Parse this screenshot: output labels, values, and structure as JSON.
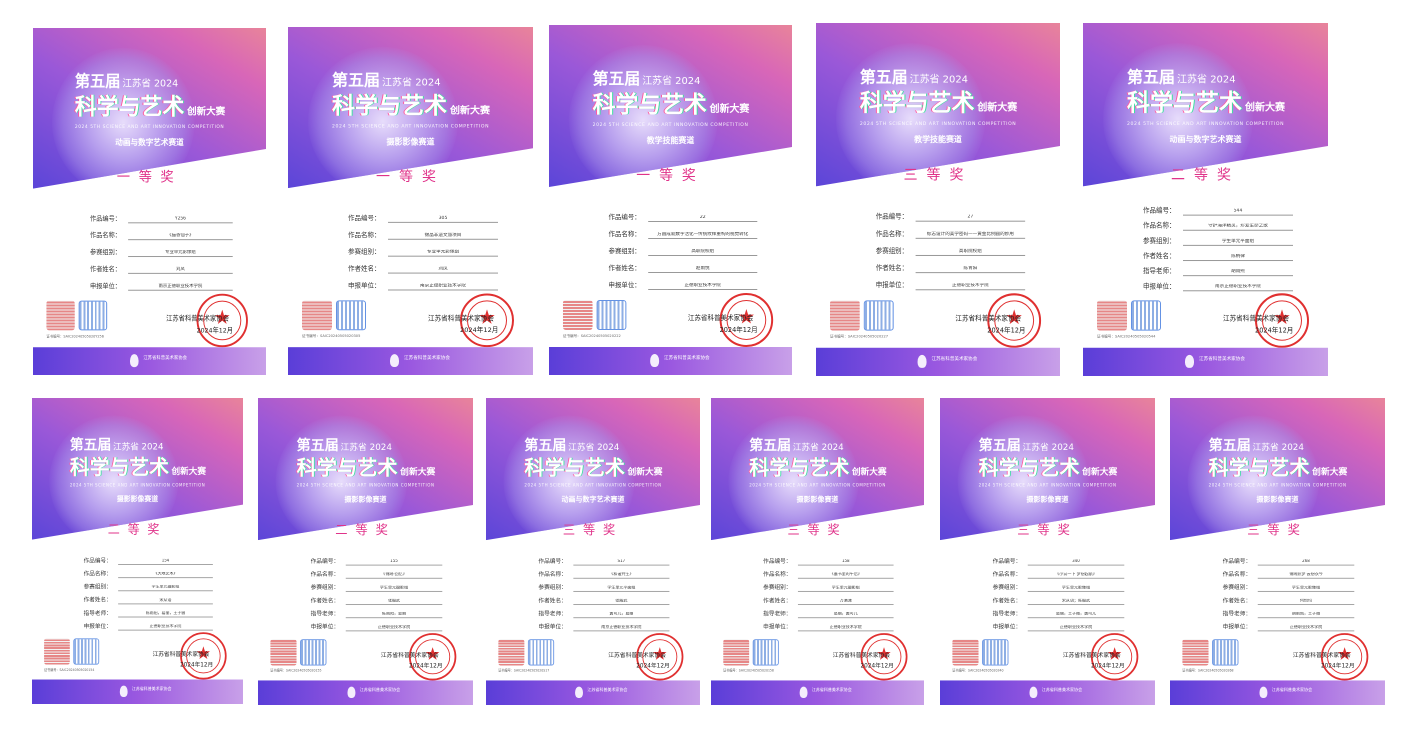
{
  "common": {
    "edition": "第五届",
    "province_year": "江苏省 2024",
    "title_main": "科学与艺术",
    "title_sub": "创新大赛",
    "title_en": "2024 5TH SCIENCE AND ART INNOVATION COMPETITION",
    "signer": "江苏省科普美术家协会",
    "date": "2024年12月",
    "footer_org": "江苏省科普美术家协会",
    "labels": {
      "id": "作品编号：",
      "name": "作品名称：",
      "group": "参赛组别：",
      "author": "作者姓名：",
      "teacher": "指导老师：",
      "unit": "申报单位："
    },
    "colors": {
      "award": "#e0338a",
      "seal": "#e03030",
      "header_start": "#5a45d8",
      "header_end": "#e8849a"
    }
  },
  "certificates": [
    {
      "track": "动画与数字艺术赛道",
      "award": "一等奖",
      "id": "Y256",
      "name": "《猫香仙子》",
      "group": "专业单元影像组",
      "author": "刘凤",
      "unit": "南京正德职业技术学院",
      "cert_no": "证书编号：SAIC20240505020Y256"
    },
    {
      "track": "摄影影像赛道",
      "award": "一等奖",
      "id": "305",
      "name": "锦晶非遗文旅项目",
      "group": "专业单元影像组",
      "author": "刘凤",
      "unit": "南京正德职业技术学院",
      "cert_no": "证书编号：SAIC20240505020305"
    },
    {
      "track": "教学技能赛道",
      "award": "一等奖",
      "id": "22",
      "name": "方圆成就数字活化—传统纹样重构的视觉转化",
      "group": "高职院校组",
      "author": "赵雨悦",
      "unit": "正德职业技术学院",
      "cert_no": "证书编号：SAIC20240505020222"
    },
    {
      "track": "教学技能赛道",
      "award": "三等奖",
      "id": "27",
      "name": "标志设计的美学密码——黄金比例圆的妙用",
      "group": "高职院校组",
      "author": "陈青阳",
      "unit": "正德职业技术学院",
      "cert_no": "证书编号：SAIC20240505020227"
    },
    {
      "track": "动画与数字艺术赛道",
      "award": "二等奖",
      "id": "544",
      "name": "守护海洋精灵，珍爱生命之歌",
      "group": "学生单元平面组",
      "author": "陈柄律",
      "teacher": "胡雨熙",
      "unit": "南京正德职业技术学院",
      "cert_no": "证书编号：SAIC20240505020544"
    },
    {
      "track": "摄影影像赛道",
      "award": "二等奖",
      "id": "154",
      "name": "《大地艺术》",
      "group": "学生单元摄影组",
      "author": "宋从语",
      "teacher": "陈雨阳，葛丽，王子薇",
      "unit": "正德职业技术学院",
      "cert_no": "证书编号：SAIC20240505020154"
    },
    {
      "track": "摄影影像赛道",
      "award": "二等奖",
      "id": "155",
      "name": "《锦绣·回忆》",
      "group": "学生单元摄影组",
      "author": "张殷武",
      "teacher": "陈雨阳，葛丽",
      "unit": "正德职业技术学院",
      "cert_no": "证书编号：SAIC20240505020155"
    },
    {
      "track": "动画与数字艺术赛道",
      "award": "三等奖",
      "id": "S17",
      "name": "《和谐共生》",
      "group": "学生单元平面组",
      "author": "张殷武",
      "teacher": "黄可儿，葛丽",
      "unit": "南京正德职业技术学院",
      "cert_no": "证书编号：SAIC20240505020S17"
    },
    {
      "track": "摄影影像赛道",
      "award": "三等奖",
      "id": "158",
      "name": "《墨书里的午后》",
      "group": "学生单元摄影组",
      "author": "万满潇",
      "teacher": "葛丽，黄可儿",
      "unit": "正德职业技术学院",
      "cert_no": "证书编号：SAIC20240505020158"
    },
    {
      "track": "摄影影像赛道",
      "award": "三等奖",
      "id": "340",
      "name": "《小试一下 梦想起航》",
      "group": "学生单元影像组",
      "author": "宋从语；陈殷武",
      "teacher": "葛丽，王子薇，黄可儿",
      "unit": "正德职业技术学院",
      "cert_no": "证书编号：SAIC20240505020340"
    },
    {
      "track": "摄影影像赛道",
      "award": "三等奖",
      "id": "268",
      "name": "锦绣织梦 云想衣今",
      "group": "学生单元影像组",
      "author": "何怡均",
      "teacher": "胡雨熙，王子薇",
      "unit": "正德职业技术学院",
      "cert_no": "证书编号：SAIC20240505020268"
    }
  ]
}
